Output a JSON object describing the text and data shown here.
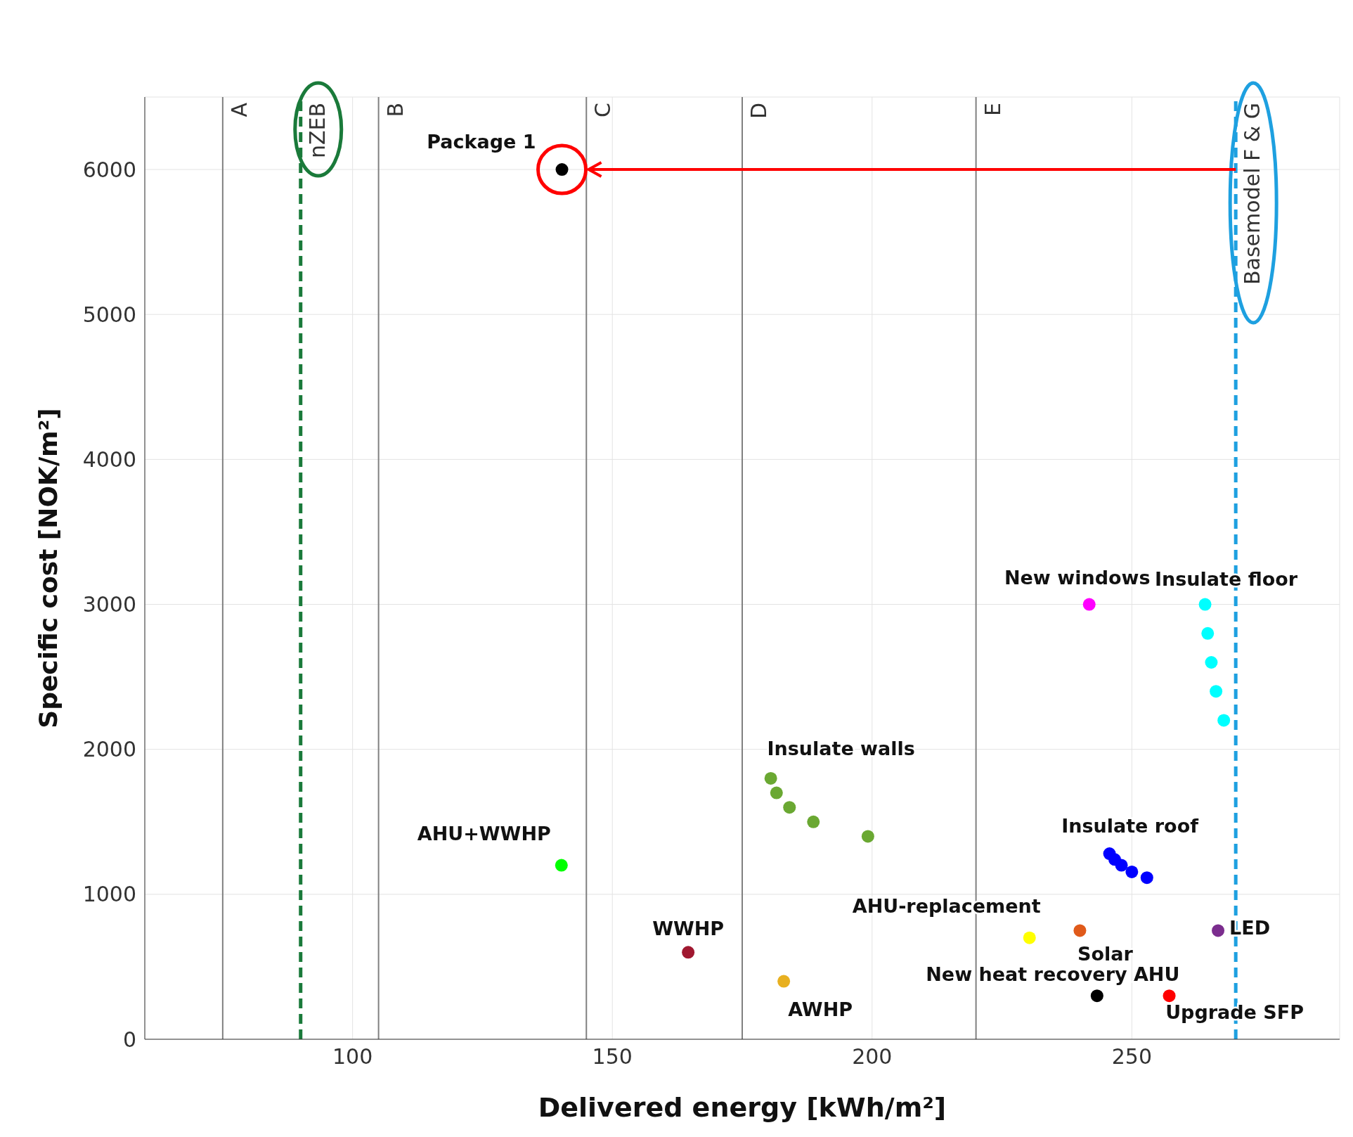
{
  "chart_data": {
    "type": "scatter",
    "xlabel": "Delivered energy [kWh/m²]",
    "ylabel": "Specific cost [NOK/m²]",
    "xlim": [
      60,
      290
    ],
    "xticks": [
      100,
      150,
      200,
      250
    ],
    "ylim": [
      0,
      6500
    ],
    "yticks": [
      0,
      1000,
      2000,
      3000,
      4000,
      5000,
      6000
    ],
    "grid": true,
    "marker": "circle",
    "series": [
      {
        "name": "Package 1",
        "color": "#000000",
        "x": [
          140.3
        ],
        "values": [
          6000
        ]
      },
      {
        "name": "AHU+WWHP",
        "color": "#00ff00",
        "x": [
          140.2
        ],
        "values": [
          1200
        ]
      },
      {
        "name": "WWHP",
        "color": "#a01830",
        "x": [
          164.6
        ],
        "values": [
          600
        ]
      },
      {
        "name": "AWHP",
        "color": "#e8b020",
        "x": [
          183
        ],
        "values": [
          400
        ]
      },
      {
        "name": "Insulate walls",
        "color": "#6aa832",
        "x": [
          180.5,
          181.6,
          184.1,
          188.7,
          199.2
        ],
        "values": [
          1800,
          1700,
          1600,
          1500,
          1400
        ]
      },
      {
        "name": "AHU-replacement",
        "color": "#ffff00",
        "x": [
          230.3
        ],
        "values": [
          700
        ]
      },
      {
        "name": "Solar",
        "color": "#e05a1a",
        "x": [
          240
        ],
        "values": [
          750
        ]
      },
      {
        "name": "New heat recovery AHU",
        "color": "#000000",
        "x": [
          243.3
        ],
        "values": [
          300
        ]
      },
      {
        "name": "Upgrade SFP",
        "color": "#ff0000",
        "x": [
          257.2
        ],
        "values": [
          300
        ]
      },
      {
        "name": "LED",
        "color": "#7b2d8e",
        "x": [
          266.6
        ],
        "values": [
          750
        ]
      },
      {
        "name": "New windows",
        "color": "#ff00ff",
        "x": [
          241.8
        ],
        "values": [
          3000
        ]
      },
      {
        "name": "Insulate floor",
        "color": "#00ffff",
        "x": [
          264.1,
          264.6,
          265.3,
          266.2,
          267.7
        ],
        "values": [
          3000,
          2800,
          2600,
          2400,
          2200
        ]
      },
      {
        "name": "Insulate roof",
        "color": "#0000ff",
        "x": [
          245.7,
          246.7,
          248,
          250,
          252.9
        ],
        "values": [
          1280,
          1240,
          1200,
          1155,
          1115
        ]
      }
    ],
    "ref_lines": [
      {
        "axis": "x",
        "value": 75,
        "label": "A",
        "color": "#808080",
        "line_style": "solid"
      },
      {
        "axis": "x",
        "value": 90,
        "label": "nZEB",
        "color": "#1a7a3a",
        "line_style": "dashed"
      },
      {
        "axis": "x",
        "value": 105,
        "label": "B",
        "color": "#808080",
        "line_style": "solid"
      },
      {
        "axis": "x",
        "value": 145,
        "label": "C",
        "color": "#808080",
        "line_style": "solid"
      },
      {
        "axis": "x",
        "value": 175,
        "label": "D",
        "color": "#808080",
        "line_style": "solid"
      },
      {
        "axis": "x",
        "value": 220,
        "label": "E",
        "color": "#808080",
        "line_style": "solid"
      },
      {
        "axis": "x",
        "value": 270,
        "label": "Basemodel F & G",
        "color": "#1ea0e0",
        "line_style": "dashed"
      }
    ]
  }
}
